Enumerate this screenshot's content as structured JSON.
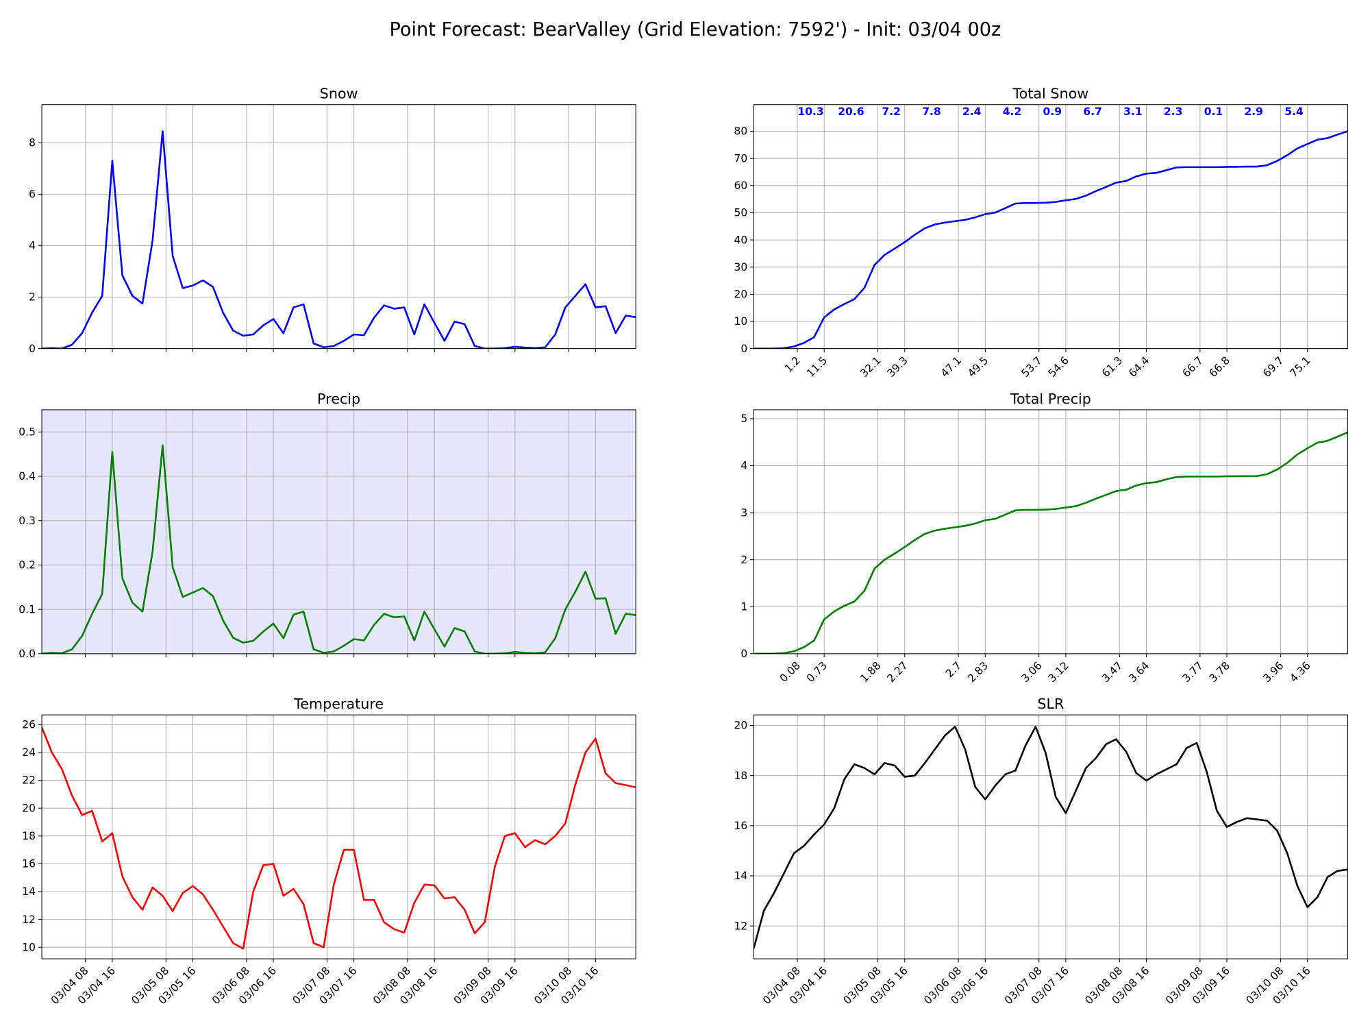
{
  "title": "Point Forecast: BearValley (Grid Elevation: 7592') - Init: 03/04 00z",
  "chart_data": [
    {
      "type": "line",
      "title": "Snow",
      "color": "#0000ff",
      "grid": true,
      "x": [
        "03/03 19",
        "03/03 22",
        "03/04 01",
        "03/04 04",
        "03/04 07",
        "03/04 10",
        "03/04 13",
        "03/04 16",
        "03/04 19",
        "03/04 22",
        "03/05 01",
        "03/05 04",
        "03/05 07",
        "03/05 10",
        "03/05 13",
        "03/05 16",
        "03/05 19",
        "03/05 22",
        "03/06 01",
        "03/06 04",
        "03/06 07",
        "03/06 10",
        "03/06 13",
        "03/06 16",
        "03/06 19",
        "03/06 22",
        "03/07 01",
        "03/07 04",
        "03/07 07",
        "03/07 10",
        "03/07 13",
        "03/07 16",
        "03/07 19",
        "03/07 22",
        "03/08 01",
        "03/08 04",
        "03/08 07",
        "03/08 10",
        "03/08 13",
        "03/08 16",
        "03/08 19",
        "03/08 22",
        "03/09 01",
        "03/09 04",
        "03/09 07",
        "03/09 10",
        "03/09 13",
        "03/09 16",
        "03/09 19",
        "03/09 22",
        "03/10 01",
        "03/10 04",
        "03/10 07",
        "03/10 10",
        "03/10 13",
        "03/10 16",
        "03/10 19",
        "03/10 22",
        "03/11 01",
        "03/11 04"
      ],
      "values": [
        0,
        0.02,
        0,
        0.15,
        0.6,
        1.4,
        2.05,
        7.3,
        2.85,
        2.05,
        1.75,
        4.2,
        8.45,
        3.6,
        2.35,
        2.45,
        2.65,
        2.4,
        1.4,
        0.7,
        0.5,
        0.55,
        0.9,
        1.15,
        0.6,
        1.6,
        1.72,
        0.2,
        0.05,
        0.1,
        0.3,
        0.55,
        0.52,
        1.2,
        1.68,
        1.55,
        1.6,
        0.55,
        1.72,
        1.0,
        0.3,
        1.05,
        0.95,
        0.1,
        0,
        0,
        0.02,
        0.07,
        0.04,
        0.02,
        0.05,
        0.55,
        1.6,
        2.05,
        2.5,
        1.6,
        1.65,
        0.6,
        1.28,
        1.22
      ],
      "xlim": [
        "03/03 19",
        "03/11 04"
      ],
      "xticks": [
        {
          "value": "03/04 08"
        },
        {
          "value": "03/04 16"
        },
        {
          "value": "03/05 08"
        },
        {
          "value": "03/05 16"
        },
        {
          "value": "03/06 08"
        },
        {
          "value": "03/06 16"
        },
        {
          "value": "03/07 08"
        },
        {
          "value": "03/07 16"
        },
        {
          "value": "03/08 08"
        },
        {
          "value": "03/08 16"
        },
        {
          "value": "03/09 08"
        },
        {
          "value": "03/09 16"
        },
        {
          "value": "03/10 08"
        },
        {
          "value": "03/10 16"
        }
      ],
      "ylim": [
        0,
        9.48
      ],
      "yticks": [
        0,
        2,
        4,
        6,
        8
      ]
    },
    {
      "type": "line",
      "title": "Total Snow",
      "color": "#0000ff",
      "grid": true,
      "x": [
        "03/03 19",
        "03/03 22",
        "03/04 01",
        "03/04 04",
        "03/04 07",
        "03/04 10",
        "03/04 13",
        "03/04 16",
        "03/04 19",
        "03/04 22",
        "03/05 01",
        "03/05 04",
        "03/05 07",
        "03/05 10",
        "03/05 13",
        "03/05 16",
        "03/05 19",
        "03/05 22",
        "03/06 01",
        "03/06 04",
        "03/06 07",
        "03/06 10",
        "03/06 13",
        "03/06 16",
        "03/06 19",
        "03/06 22",
        "03/07 01",
        "03/07 04",
        "03/07 07",
        "03/07 10",
        "03/07 13",
        "03/07 16",
        "03/07 19",
        "03/07 22",
        "03/08 01",
        "03/08 04",
        "03/08 07",
        "03/08 10",
        "03/08 13",
        "03/08 16",
        "03/08 19",
        "03/08 22",
        "03/09 01",
        "03/09 04",
        "03/09 07",
        "03/09 10",
        "03/09 13",
        "03/09 16",
        "03/09 19",
        "03/09 22",
        "03/10 01",
        "03/10 04",
        "03/10 07",
        "03/10 10",
        "03/10 13",
        "03/10 16",
        "03/10 19",
        "03/10 22",
        "03/11 01",
        "03/11 04"
      ],
      "values": [
        0,
        0,
        0,
        0.15,
        0.75,
        2.1,
        4.2,
        11.5,
        14.4,
        16.4,
        18.2,
        22.4,
        30.8,
        34.5,
        36.8,
        39.2,
        41.9,
        44.3,
        45.7,
        46.4,
        46.9,
        47.4,
        48.3,
        49.5,
        50.1,
        51.7,
        53.4,
        53.6,
        53.6,
        53.7,
        54.0,
        54.6,
        55.1,
        56.3,
        58.0,
        59.5,
        61.1,
        61.7,
        63.4,
        64.4,
        64.7,
        65.7,
        66.7,
        66.8,
        66.8,
        66.8,
        66.8,
        66.9,
        66.9,
        67.0,
        67.0,
        67.5,
        69.1,
        71.2,
        73.7,
        75.3,
        76.9,
        77.5,
        78.8,
        80.0
      ],
      "xlim": [
        "03/03 19",
        "03/11 04"
      ],
      "xticks": [
        {
          "value": "03/04 08",
          "label": "1.2"
        },
        {
          "value": "03/04 16",
          "label": "11.5"
        },
        {
          "value": "03/05 08",
          "label": "32.1"
        },
        {
          "value": "03/05 16",
          "label": "39.3"
        },
        {
          "value": "03/06 08",
          "label": "47.1"
        },
        {
          "value": "03/06 16",
          "label": "49.5"
        },
        {
          "value": "03/07 08",
          "label": "53.7"
        },
        {
          "value": "03/07 16",
          "label": "54.6"
        },
        {
          "value": "03/08 08",
          "label": "61.3"
        },
        {
          "value": "03/08 16",
          "label": "64.4"
        },
        {
          "value": "03/09 08",
          "label": "66.7"
        },
        {
          "value": "03/09 16",
          "label": "66.8"
        },
        {
          "value": "03/10 08",
          "label": "69.7"
        },
        {
          "value": "03/10 16",
          "label": "75.1"
        }
      ],
      "annotations": [
        10.3,
        20.6,
        7.2,
        7.8,
        2.4,
        4.2,
        0.9,
        6.7,
        3.1,
        2.3,
        0.1,
        2.9,
        5.4
      ],
      "ylim": [
        0,
        89.8
      ],
      "yticks": [
        0,
        10,
        20,
        30,
        40,
        50,
        60,
        70,
        80
      ]
    },
    {
      "type": "line",
      "title": "Precip",
      "color": "#008000",
      "background": "#e6e6ff",
      "grid": true,
      "x": [
        "03/03 19",
        "03/03 22",
        "03/04 01",
        "03/04 04",
        "03/04 07",
        "03/04 10",
        "03/04 13",
        "03/04 16",
        "03/04 19",
        "03/04 22",
        "03/05 01",
        "03/05 04",
        "03/05 07",
        "03/05 10",
        "03/05 13",
        "03/05 16",
        "03/05 19",
        "03/05 22",
        "03/06 01",
        "03/06 04",
        "03/06 07",
        "03/06 10",
        "03/06 13",
        "03/06 16",
        "03/06 19",
        "03/06 22",
        "03/07 01",
        "03/07 04",
        "03/07 07",
        "03/07 10",
        "03/07 13",
        "03/07 16",
        "03/07 19",
        "03/07 22",
        "03/08 01",
        "03/08 04",
        "03/08 07",
        "03/08 10",
        "03/08 13",
        "03/08 16",
        "03/08 19",
        "03/08 22",
        "03/09 01",
        "03/09 04",
        "03/09 07",
        "03/09 10",
        "03/09 13",
        "03/09 16",
        "03/09 19",
        "03/09 22",
        "03/10 01",
        "03/10 04",
        "03/10 07",
        "03/10 10",
        "03/10 13",
        "03/10 16",
        "03/10 19",
        "03/10 22",
        "03/11 01",
        "03/11 04"
      ],
      "values": [
        0,
        0.002,
        0.001,
        0.01,
        0.04,
        0.09,
        0.135,
        0.455,
        0.17,
        0.115,
        0.095,
        0.23,
        0.47,
        0.195,
        0.128,
        0.138,
        0.148,
        0.13,
        0.075,
        0.036,
        0.025,
        0.029,
        0.05,
        0.068,
        0.035,
        0.088,
        0.095,
        0.01,
        0.002,
        0.005,
        0.018,
        0.033,
        0.03,
        0.065,
        0.09,
        0.082,
        0.084,
        0.03,
        0.095,
        0.055,
        0.016,
        0.058,
        0.05,
        0.005,
        0,
        0,
        0.001,
        0.004,
        0.002,
        0.001,
        0.003,
        0.035,
        0.1,
        0.14,
        0.185,
        0.124,
        0.125,
        0.045,
        0.09,
        0.087
      ],
      "xlim": [
        "03/03 19",
        "03/11 04"
      ],
      "xticks": [
        {
          "value": "03/04 08"
        },
        {
          "value": "03/04 16"
        },
        {
          "value": "03/05 08"
        },
        {
          "value": "03/05 16"
        },
        {
          "value": "03/06 08"
        },
        {
          "value": "03/06 16"
        },
        {
          "value": "03/07 08"
        },
        {
          "value": "03/07 16"
        },
        {
          "value": "03/08 08"
        },
        {
          "value": "03/08 16"
        },
        {
          "value": "03/09 08"
        },
        {
          "value": "03/09 16"
        },
        {
          "value": "03/10 08"
        },
        {
          "value": "03/10 16"
        }
      ],
      "ylim": [
        0,
        0.55
      ],
      "yticks": [
        {
          "value": 0,
          "label": "0.0"
        },
        0.1,
        0.2,
        0.3,
        0.4,
        0.5
      ]
    },
    {
      "type": "line",
      "title": "Total Precip",
      "color": "#008000",
      "grid": true,
      "x": [
        "03/03 19",
        "03/03 22",
        "03/04 01",
        "03/04 04",
        "03/04 07",
        "03/04 10",
        "03/04 13",
        "03/04 16",
        "03/04 19",
        "03/04 22",
        "03/05 01",
        "03/05 04",
        "03/05 07",
        "03/05 10",
        "03/05 13",
        "03/05 16",
        "03/05 19",
        "03/05 22",
        "03/06 01",
        "03/06 04",
        "03/06 07",
        "03/06 10",
        "03/06 13",
        "03/06 16",
        "03/06 19",
        "03/06 22",
        "03/07 01",
        "03/07 04",
        "03/07 07",
        "03/07 10",
        "03/07 13",
        "03/07 16",
        "03/07 19",
        "03/07 22",
        "03/08 01",
        "03/08 04",
        "03/08 07",
        "03/08 10",
        "03/08 13",
        "03/08 16",
        "03/08 19",
        "03/08 22",
        "03/09 01",
        "03/09 04",
        "03/09 07",
        "03/09 10",
        "03/09 13",
        "03/09 16",
        "03/09 19",
        "03/09 22",
        "03/10 01",
        "03/10 04",
        "03/10 07",
        "03/10 10",
        "03/10 13",
        "03/10 16",
        "03/10 19",
        "03/10 22",
        "03/11 01",
        "03/11 04"
      ],
      "values": [
        0,
        0,
        0.002,
        0.012,
        0.05,
        0.14,
        0.28,
        0.73,
        0.9,
        1.02,
        1.11,
        1.34,
        1.81,
        2.0,
        2.13,
        2.27,
        2.42,
        2.55,
        2.62,
        2.66,
        2.69,
        2.72,
        2.77,
        2.84,
        2.87,
        2.96,
        3.05,
        3.06,
        3.06,
        3.065,
        3.08,
        3.11,
        3.14,
        3.21,
        3.3,
        3.38,
        3.46,
        3.49,
        3.58,
        3.63,
        3.65,
        3.71,
        3.76,
        3.77,
        3.77,
        3.77,
        3.77,
        3.775,
        3.777,
        3.778,
        3.78,
        3.82,
        3.92,
        4.06,
        4.24,
        4.37,
        4.49,
        4.53,
        4.62,
        4.71
      ],
      "xlim": [
        "03/03 19",
        "03/11 04"
      ],
      "xticks": [
        {
          "value": "03/04 08",
          "label": "0.08"
        },
        {
          "value": "03/04 16",
          "label": "0.73"
        },
        {
          "value": "03/05 08",
          "label": "1.88"
        },
        {
          "value": "03/05 16",
          "label": "2.27"
        },
        {
          "value": "03/06 08",
          "label": "2.7"
        },
        {
          "value": "03/06 16",
          "label": "2.83"
        },
        {
          "value": "03/07 08",
          "label": "3.06"
        },
        {
          "value": "03/07 16",
          "label": "3.12"
        },
        {
          "value": "03/08 08",
          "label": "3.47"
        },
        {
          "value": "03/08 16",
          "label": "3.64"
        },
        {
          "value": "03/09 08",
          "label": "3.77"
        },
        {
          "value": "03/09 16",
          "label": "3.78"
        },
        {
          "value": "03/10 08",
          "label": "3.96"
        },
        {
          "value": "03/10 16",
          "label": "4.36"
        }
      ],
      "ylim": [
        0,
        5.19
      ],
      "yticks": [
        0,
        1,
        2,
        3,
        4,
        5
      ]
    },
    {
      "type": "line",
      "title": "Temperature",
      "color": "#ff0000",
      "grid": true,
      "x": [
        "03/03 19",
        "03/03 22",
        "03/04 01",
        "03/04 04",
        "03/04 07",
        "03/04 10",
        "03/04 13",
        "03/04 16",
        "03/04 19",
        "03/04 22",
        "03/05 01",
        "03/05 04",
        "03/05 07",
        "03/05 10",
        "03/05 13",
        "03/05 16",
        "03/05 19",
        "03/05 22",
        "03/06 01",
        "03/06 04",
        "03/06 07",
        "03/06 10",
        "03/06 13",
        "03/06 16",
        "03/06 19",
        "03/06 22",
        "03/07 01",
        "03/07 04",
        "03/07 07",
        "03/07 10",
        "03/07 13",
        "03/07 16",
        "03/07 19",
        "03/07 22",
        "03/08 01",
        "03/08 04",
        "03/08 07",
        "03/08 10",
        "03/08 13",
        "03/08 16",
        "03/08 19",
        "03/08 22",
        "03/09 01",
        "03/09 04",
        "03/09 07",
        "03/09 10",
        "03/09 13",
        "03/09 16",
        "03/09 19",
        "03/09 22",
        "03/10 01",
        "03/10 04",
        "03/10 07",
        "03/10 10",
        "03/10 13",
        "03/10 16",
        "03/10 19",
        "03/10 22",
        "03/11 01",
        "03/11 04"
      ],
      "values": [
        25.8,
        24.0,
        22.8,
        20.9,
        19.5,
        19.8,
        17.6,
        18.2,
        15.1,
        13.6,
        12.7,
        14.3,
        13.7,
        12.6,
        13.9,
        14.4,
        13.8,
        12.7,
        11.5,
        10.3,
        9.9,
        14.0,
        15.9,
        16.0,
        13.7,
        14.2,
        13.1,
        10.3,
        10.0,
        14.5,
        17.0,
        17.0,
        13.4,
        13.4,
        11.8,
        11.3,
        11.05,
        13.2,
        14.5,
        14.45,
        13.5,
        13.6,
        12.7,
        11.0,
        11.8,
        15.8,
        18.0,
        18.2,
        17.2,
        17.7,
        17.4,
        18.0,
        18.9,
        21.7,
        24.0,
        25.0,
        22.5,
        21.8,
        21.65,
        21.5
      ],
      "xlim": [
        "03/03 19",
        "03/11 04"
      ],
      "xticks": [
        "03/04 08",
        "03/04 16",
        "03/05 08",
        "03/05 16",
        "03/06 08",
        "03/06 16",
        "03/07 08",
        "03/07 16",
        "03/08 08",
        "03/08 16",
        "03/09 08",
        "03/09 16",
        "03/10 08",
        "03/10 16"
      ],
      "ylim": [
        9.17,
        26.7
      ],
      "yticks": [
        10,
        12,
        14,
        16,
        18,
        20,
        22,
        24,
        26
      ]
    },
    {
      "type": "line",
      "title": "SLR",
      "color": "#000000",
      "grid": true,
      "x": [
        "03/03 19",
        "03/03 22",
        "03/04 01",
        "03/04 04",
        "03/04 07",
        "03/04 10",
        "03/04 13",
        "03/04 16",
        "03/04 19",
        "03/04 22",
        "03/05 01",
        "03/05 04",
        "03/05 07",
        "03/05 10",
        "03/05 13",
        "03/05 16",
        "03/05 19",
        "03/05 22",
        "03/06 01",
        "03/06 04",
        "03/06 07",
        "03/06 10",
        "03/06 13",
        "03/06 16",
        "03/06 19",
        "03/06 22",
        "03/07 01",
        "03/07 04",
        "03/07 07",
        "03/07 10",
        "03/07 13",
        "03/07 16",
        "03/07 19",
        "03/07 22",
        "03/08 01",
        "03/08 04",
        "03/08 07",
        "03/08 10",
        "03/08 13",
        "03/08 16",
        "03/08 19",
        "03/08 22",
        "03/09 01",
        "03/09 04",
        "03/09 07",
        "03/09 10",
        "03/09 13",
        "03/09 16",
        "03/09 19",
        "03/09 22",
        "03/10 01",
        "03/10 04",
        "03/10 07",
        "03/10 10",
        "03/10 13",
        "03/10 16",
        "03/10 19",
        "03/10 22",
        "03/11 01",
        "03/11 04"
      ],
      "values": [
        11.1,
        12.6,
        13.3,
        14.1,
        14.9,
        15.2,
        15.65,
        16.05,
        16.7,
        17.85,
        18.45,
        18.3,
        18.05,
        18.5,
        18.4,
        17.95,
        18.0,
        18.5,
        19.05,
        19.6,
        19.95,
        19.05,
        17.55,
        17.05,
        17.6,
        18.05,
        18.2,
        19.2,
        19.95,
        18.9,
        17.15,
        16.5,
        17.4,
        18.3,
        18.7,
        19.25,
        19.45,
        18.95,
        18.1,
        17.8,
        18.05,
        18.25,
        18.45,
        19.1,
        19.3,
        18.15,
        16.6,
        15.95,
        16.15,
        16.3,
        16.25,
        16.2,
        15.8,
        14.9,
        13.6,
        12.75,
        13.15,
        13.95,
        14.2,
        14.25
      ],
      "xlim": [
        "03/03 19",
        "03/11 04"
      ],
      "xticks": [
        "03/04 08",
        "03/04 16",
        "03/05 08",
        "03/05 16",
        "03/06 08",
        "03/06 16",
        "03/07 08",
        "03/07 16",
        "03/08 08",
        "03/08 16",
        "03/09 08",
        "03/09 16",
        "03/10 08",
        "03/10 16"
      ],
      "ylim": [
        10.69,
        20.42
      ],
      "yticks": [
        12,
        14,
        16,
        18,
        20
      ]
    }
  ]
}
